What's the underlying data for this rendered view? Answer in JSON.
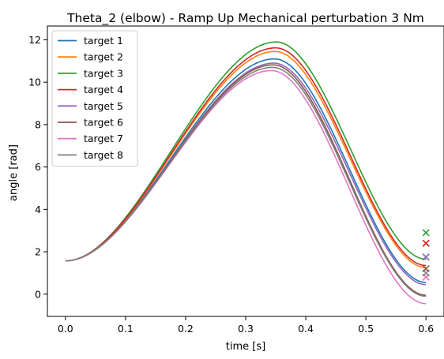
{
  "chart_data": {
    "type": "line",
    "title": "Theta_2 (elbow) - Ramp Up Mechanical perturbation 3 Nm",
    "xlabel": "time [s]",
    "ylabel": "angle [rad]",
    "xlim": [
      -0.03,
      0.63
    ],
    "ylim": [
      -1.05,
      12.65
    ],
    "xticks": [
      0.0,
      0.1,
      0.2,
      0.3,
      0.4,
      0.5,
      0.6
    ],
    "xtick_labels": [
      "0.0",
      "0.1",
      "0.2",
      "0.3",
      "0.4",
      "0.5",
      "0.6"
    ],
    "yticks": [
      0,
      2,
      4,
      6,
      8,
      10,
      12
    ],
    "ytick_labels": [
      "0",
      "2",
      "4",
      "6",
      "8",
      "10",
      "12"
    ],
    "grid": false,
    "legend_position": "top-left",
    "start_value": 1.57,
    "series": [
      {
        "name": "target 1",
        "color": "#1f77b4",
        "peak_time": 0.348,
        "peak": 11.1,
        "end": 0.55,
        "end_marker": 1.75
      },
      {
        "name": "target 2",
        "color": "#ff7f0e",
        "peak_time": 0.349,
        "peak": 11.45,
        "end": 1.25,
        "end_marker": 2.4
      },
      {
        "name": "target 3",
        "color": "#2ca02c",
        "peak_time": 0.351,
        "peak": 11.9,
        "end": 1.65,
        "end_marker": 2.9
      },
      {
        "name": "target 4",
        "color": "#d62728",
        "peak_time": 0.35,
        "peak": 11.62,
        "end": 1.35,
        "end_marker": 2.4
      },
      {
        "name": "target 5",
        "color": "#9467bd",
        "peak_time": 0.347,
        "peak": 10.9,
        "end": 0.45,
        "end_marker": 1.75
      },
      {
        "name": "target 6",
        "color": "#8c564b",
        "peak_time": 0.346,
        "peak": 10.82,
        "end": -0.05,
        "end_marker": 1.2
      },
      {
        "name": "target 7",
        "color": "#e377c2",
        "peak_time": 0.343,
        "peak": 10.55,
        "end": -0.45,
        "end_marker": 0.8
      },
      {
        "name": "target 8",
        "color": "#7f7f7f",
        "peak_time": 0.345,
        "peak": 10.7,
        "end": -0.1,
        "end_marker": 1.0
      }
    ],
    "x_range": [
      0.0,
      0.6
    ],
    "end_marker_x": 0.6,
    "end_marker_symbol": "x"
  }
}
